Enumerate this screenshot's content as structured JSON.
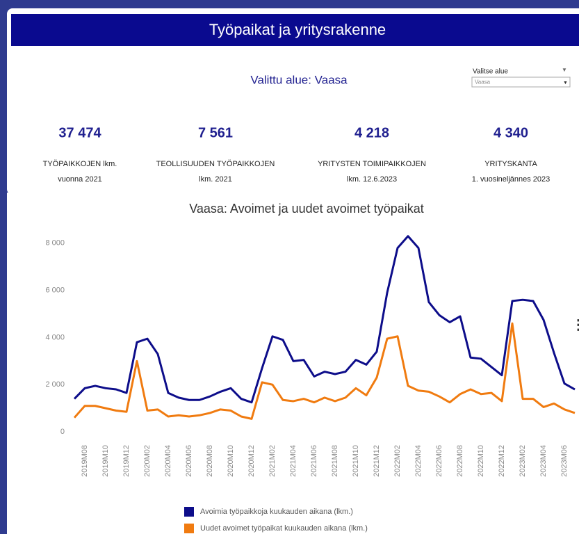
{
  "header": {
    "title": "Työpaikat ja yritysrakenne",
    "selected": "Valittu alue: Vaasa"
  },
  "selector": {
    "label": "Valitse alue",
    "value": "Vaasa"
  },
  "kpis": [
    {
      "value": "37 474",
      "label": [
        "TYÖPAIKKOJEN lkm.",
        "vuonna 2021"
      ]
    },
    {
      "value": "7 561",
      "label": [
        "TEOLLISUUDEN TYÖPAIKKOJEN",
        "lkm. 2021"
      ]
    },
    {
      "value": "4 218",
      "label": [
        "YRITYSTEN TOIMIPAIKKOJEN",
        "lkm. 12.6.2023"
      ]
    },
    {
      "value": "4 340",
      "label": [
        "YRITYSKANTA",
        "1. vuosineljännes 2023"
      ]
    }
  ],
  "chart_data": {
    "type": "line",
    "title": "Vaasa: Avoimet ja uudet avoimet työpaikat",
    "categories": [
      null,
      "2019M08",
      null,
      "2019M10",
      null,
      "2019M12",
      null,
      "2020M02",
      null,
      "2020M04",
      null,
      "2020M06",
      null,
      "2020M08",
      null,
      "2020M10",
      null,
      "2020M12",
      null,
      "2021M02",
      null,
      "2021M04",
      null,
      "2021M06",
      null,
      "2021M08",
      null,
      "2021M10",
      null,
      "2021M12",
      null,
      "2022M02",
      null,
      "2022M04",
      null,
      "2022M06",
      null,
      "2022M08",
      null,
      "2022M10",
      null,
      "2022M12",
      null,
      "2023M02",
      null,
      "2023M04",
      null,
      "2023M06",
      null
    ],
    "series": [
      {
        "name": "Avoimia työpaikkoja kuukauden aikana (lkm.)",
        "color": "#0d0d8a",
        "values": [
          1400,
          1850,
          1950,
          1850,
          1800,
          1650,
          3800,
          3950,
          3300,
          1650,
          1450,
          1350,
          1350,
          1500,
          1700,
          1850,
          1400,
          1250,
          2700,
          4050,
          3900,
          3000,
          3050,
          2350,
          2550,
          2450,
          2550,
          3050,
          2850,
          3400,
          5900,
          7800,
          8300,
          7800,
          5500,
          4950,
          4650,
          4900,
          3150,
          3100,
          2750,
          2400,
          5550,
          5600,
          5550,
          4750,
          3350,
          2050,
          1800
        ]
      },
      {
        "name": "Uudet avoimet työpaikat kuukauden aikana (lkm.)",
        "color": "#f07b10",
        "values": [
          600,
          1100,
          1100,
          1000,
          900,
          850,
          3000,
          900,
          950,
          650,
          700,
          650,
          700,
          800,
          950,
          900,
          650,
          550,
          2100,
          2000,
          1350,
          1300,
          1400,
          1250,
          1450,
          1300,
          1450,
          1850,
          1550,
          2300,
          3950,
          4050,
          1950,
          1750,
          1700,
          1500,
          1250,
          1600,
          1800,
          1600,
          1650,
          1300,
          4600,
          1400,
          1400,
          1050,
          1200,
          950,
          800
        ]
      }
    ],
    "ylim": [
      -300,
      8600
    ],
    "yticks": [
      0,
      {
        "value": 2000,
        "label": "2 000"
      },
      {
        "value": 4000,
        "label": "4 000"
      },
      {
        "value": 6000,
        "label": "6 000"
      },
      {
        "value": 8000,
        "label": "8 000"
      }
    ],
    "grid": false
  }
}
